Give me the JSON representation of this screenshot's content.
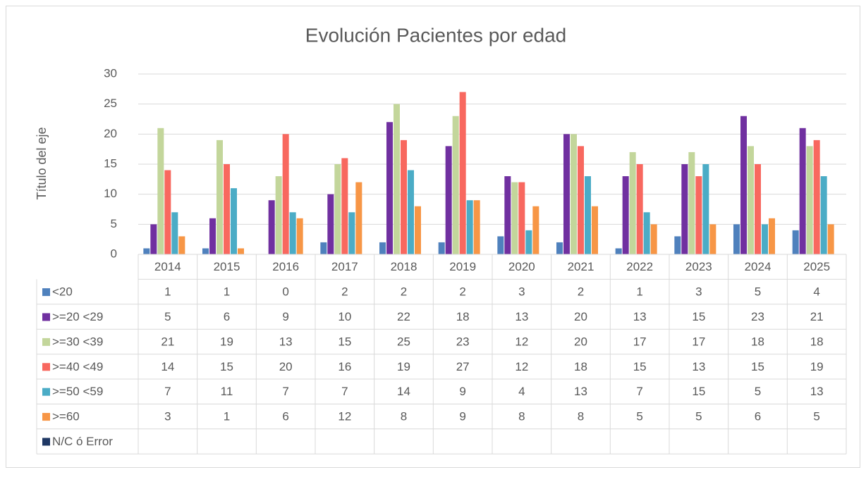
{
  "chart_data": {
    "type": "bar",
    "title": "Evolución Pacientes por edad",
    "y_label": "Título del eje",
    "categories": [
      "2014",
      "2015",
      "2016",
      "2017",
      "2018",
      "2019",
      "2020",
      "2021",
      "2022",
      "2023",
      "2024",
      "2025"
    ],
    "series": [
      {
        "name": "<20",
        "color": "#4f81bd",
        "values": [
          1,
          1,
          0,
          2,
          2,
          2,
          3,
          2,
          1,
          3,
          5,
          4
        ]
      },
      {
        "name": ">=20 <29",
        "color": "#7030a0",
        "values": [
          5,
          6,
          9,
          10,
          22,
          18,
          13,
          20,
          13,
          15,
          23,
          21
        ]
      },
      {
        "name": ">=30 <39",
        "color": "#c3d69b",
        "values": [
          21,
          19,
          13,
          15,
          25,
          23,
          12,
          20,
          17,
          17,
          18,
          18
        ]
      },
      {
        "name": ">=40 <49",
        "color": "#f8685f",
        "values": [
          14,
          15,
          20,
          16,
          19,
          27,
          12,
          18,
          15,
          13,
          15,
          19
        ]
      },
      {
        "name": ">=50 <59",
        "color": "#4bacc6",
        "values": [
          7,
          11,
          7,
          7,
          14,
          9,
          4,
          13,
          7,
          15,
          5,
          13
        ]
      },
      {
        "name": ">=60",
        "color": "#f79646",
        "values": [
          3,
          1,
          6,
          12,
          8,
          9,
          8,
          8,
          5,
          5,
          6,
          5
        ]
      },
      {
        "name": "N/C ó Error",
        "color": "#1f3864",
        "values": [
          null,
          null,
          null,
          null,
          null,
          null,
          null,
          null,
          null,
          null,
          null,
          null
        ]
      }
    ],
    "ylim": [
      0,
      30
    ],
    "yticks": [
      0,
      5,
      10,
      15,
      20,
      25,
      30
    ],
    "grid": true
  }
}
